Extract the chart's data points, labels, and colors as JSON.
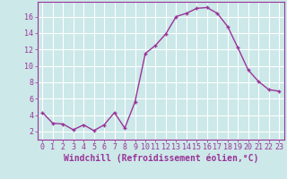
{
  "x": [
    0,
    1,
    2,
    3,
    4,
    5,
    6,
    7,
    8,
    9,
    10,
    11,
    12,
    13,
    14,
    15,
    16,
    17,
    18,
    19,
    20,
    21,
    22,
    23
  ],
  "y": [
    4.3,
    3.0,
    2.9,
    2.2,
    2.8,
    2.1,
    2.8,
    4.3,
    2.4,
    5.6,
    11.5,
    12.5,
    13.9,
    16.0,
    16.4,
    17.0,
    17.1,
    16.4,
    14.8,
    12.2,
    9.5,
    8.1,
    7.1,
    6.9
  ],
  "line_color": "#993399",
  "marker": "+",
  "marker_size": 3,
  "line_width": 1.0,
  "bg_color": "#cce8e8",
  "grid_color": "#ffffff",
  "xlabel": "Windchill (Refroidissement éolien,°C)",
  "xlim": [
    -0.5,
    23.5
  ],
  "ylim": [
    1.0,
    17.8
  ],
  "yticks": [
    2,
    4,
    6,
    8,
    10,
    12,
    14,
    16
  ],
  "xticks": [
    0,
    1,
    2,
    3,
    4,
    5,
    6,
    7,
    8,
    9,
    10,
    11,
    12,
    13,
    14,
    15,
    16,
    17,
    18,
    19,
    20,
    21,
    22,
    23
  ],
  "tick_label_size": 6,
  "xlabel_size": 7,
  "tick_color": "#993399",
  "axis_color": "#993399"
}
